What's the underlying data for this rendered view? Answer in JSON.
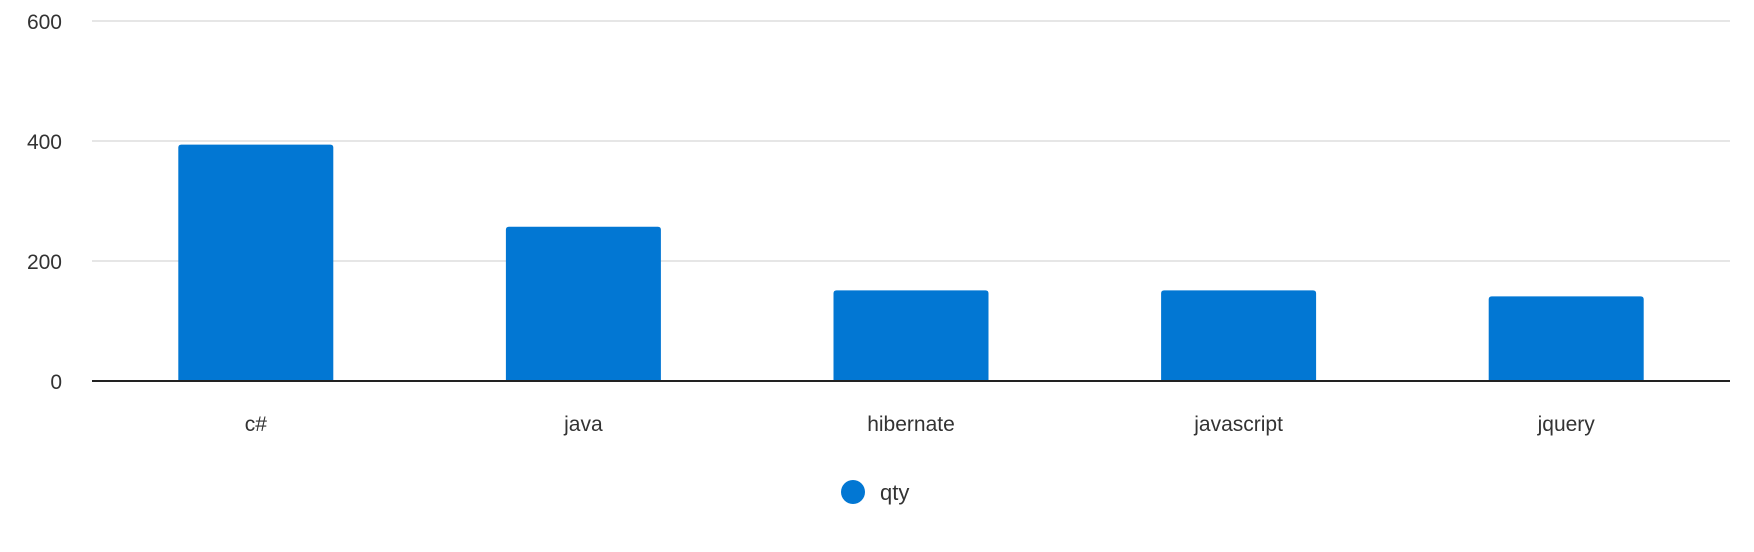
{
  "chart_data": {
    "type": "bar",
    "categories": [
      "c#",
      "java",
      "hibernate",
      "javascript",
      "jquery"
    ],
    "series": [
      {
        "name": "qty",
        "values": [
          394,
          257,
          151,
          151,
          141
        ],
        "color": "#0277d3"
      }
    ],
    "title": "",
    "xlabel": "",
    "ylabel": "",
    "ylim": [
      0,
      600
    ],
    "yticks": [
      "0",
      "200",
      "400",
      "600"
    ],
    "grid": true,
    "legend": "bottom-center"
  }
}
